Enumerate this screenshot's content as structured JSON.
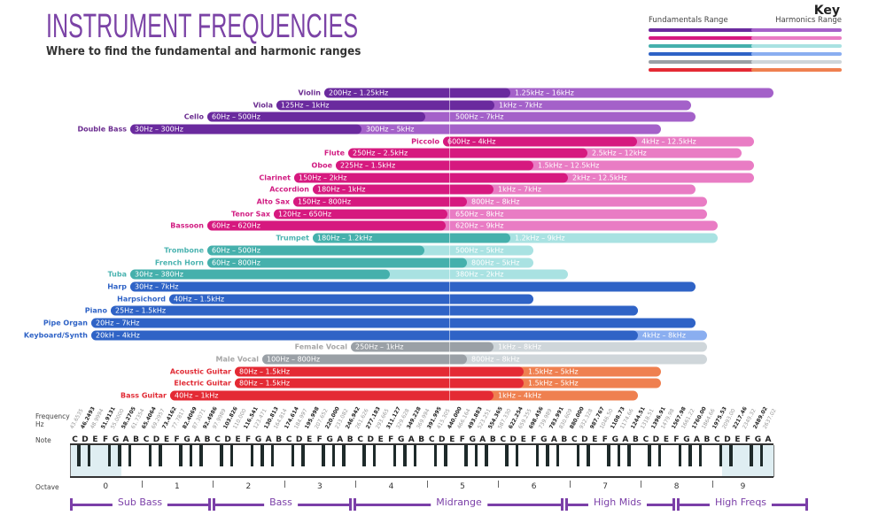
{
  "title": "INSTRUMENT FREQUENCIES",
  "subtitle": "Where to find the fundamental and harmonic ranges",
  "key": {
    "title": "Key",
    "fundamentals_label": "Fundamentals Range",
    "harmonics_label": "Harmonics Range"
  },
  "colors": {
    "strings": {
      "label": "#6b2d90",
      "fundamental": "#6a2a9e",
      "harmonic": "#a461c9"
    },
    "woodwinds": {
      "label": "#d11d82",
      "fundamental": "#d6197f",
      "harmonic": "#e97cc4"
    },
    "brass": {
      "label": "#4ab3b0",
      "fundamental": "#45b0ac",
      "harmonic": "#a9e2e2"
    },
    "keys": {
      "label": "#2f63c6",
      "fundamental": "#2f63c6",
      "harmonic": "#8aaef0"
    },
    "vocal": {
      "label": "#a6a6a6",
      "fundamental": "#9aa0a6",
      "harmonic": "#cfd6da"
    },
    "guitar": {
      "label": "#e12c36",
      "fundamental": "#e42a34",
      "harmonic": "#ef8050"
    }
  },
  "chart_data": {
    "type": "bar",
    "orientation": "horizontal-range",
    "instruments": [
      {
        "name": "Violin",
        "family": "strings",
        "fundamental": "200Hz – 1.25kHz",
        "harmonics": "1.25kHz – 16kHz"
      },
      {
        "name": "Viola",
        "family": "strings",
        "fundamental": "125Hz – 1kHz",
        "harmonics": "1kHz – 7kHz"
      },
      {
        "name": "Cello",
        "family": "strings",
        "fundamental": "60Hz – 500Hz",
        "harmonics": "500Hz – 7kHz"
      },
      {
        "name": "Double Bass",
        "family": "strings",
        "fundamental": "30Hz – 300Hz",
        "harmonics": "300Hz – 5kHz"
      },
      {
        "name": "Piccolo",
        "family": "woodwinds",
        "fundamental": "600Hz – 4kHz",
        "harmonics": "4kHz – 12.5kHz"
      },
      {
        "name": "Flute",
        "family": "woodwinds",
        "fundamental": "250Hz – 2.5kHz",
        "harmonics": "2.5kHz – 12kHz"
      },
      {
        "name": "Oboe",
        "family": "woodwinds",
        "fundamental": "225Hz – 1.5kHz",
        "harmonics": "1.5kHz – 12.5kHz"
      },
      {
        "name": "Clarinet",
        "family": "woodwinds",
        "fundamental": "150Hz – 2kHz",
        "harmonics": "2kHz – 12.5kHz"
      },
      {
        "name": "Accordion",
        "family": "woodwinds",
        "fundamental": "180Hz – 1kHz",
        "harmonics": "1kHz – 7kHz"
      },
      {
        "name": "Alto Sax",
        "family": "woodwinds",
        "fundamental": "150Hz – 800Hz",
        "harmonics": "800Hz – 8kHz"
      },
      {
        "name": "Tenor Sax",
        "family": "woodwinds",
        "fundamental": "120Hz – 650Hz",
        "harmonics": "650Hz – 8kHz"
      },
      {
        "name": "Bassoon",
        "family": "woodwinds",
        "fundamental": "60Hz – 620Hz",
        "harmonics": "620Hz – 9kHz"
      },
      {
        "name": "Trumpet",
        "family": "brass",
        "fundamental": "180Hz – 1.2kHz",
        "harmonics": "1.2kHz – 9kHz"
      },
      {
        "name": "Trombone",
        "family": "brass",
        "fundamental": "60Hz – 500Hz",
        "harmonics": "500Hz – 5kHz"
      },
      {
        "name": "French Horn",
        "family": "brass",
        "fundamental": "60Hz – 800Hz",
        "harmonics": "800Hz – 5kHz"
      },
      {
        "name": "Tuba",
        "family": "brass",
        "fundamental": "30Hz – 380Hz",
        "harmonics": "380Hz – 2kHz"
      },
      {
        "name": "Harp",
        "family": "keys",
        "fundamental": "30Hz – 7kHz",
        "harmonics": ""
      },
      {
        "name": "Harpsichord",
        "family": "keys",
        "fundamental": "40Hz – 1.5kHz",
        "harmonics": ""
      },
      {
        "name": "Piano",
        "family": "keys",
        "fundamental": "25Hz –  1.5kHz",
        "harmonics": ""
      },
      {
        "name": "Pipe Organ",
        "family": "keys",
        "fundamental": "20Hz – 7kHz",
        "harmonics": ""
      },
      {
        "name": "Keyboard/Synth",
        "family": "keys",
        "fundamental": "20kH – 4kHz",
        "harmonics": "4kHz – 8kHz"
      },
      {
        "name": "Female Vocal",
        "family": "vocal",
        "fundamental": "250Hz – 1kHz",
        "harmonics": "1kHz – 8kHz"
      },
      {
        "name": "Male Vocal",
        "family": "vocal",
        "fundamental": "100Hz – 800Hz",
        "harmonics": "800Hz – 8kHz"
      },
      {
        "name": "Acoustic Guitar",
        "family": "guitar",
        "fundamental": "80Hz – 1.5kHz",
        "harmonics": "1.5kHz – 5kHz"
      },
      {
        "name": "Electric Guitar",
        "family": "guitar",
        "fundamental": "80Hz – 1.5kHz",
        "harmonics": "1.5kHz – 5kHz"
      },
      {
        "name": "Bass Guitar",
        "family": "guitar",
        "fundamental": "40Hz – 1kHz",
        "harmonics": "1kHz – 4kHz"
      }
    ]
  },
  "keyboard": {
    "frequency_label": "Frequency Hz",
    "note_label": "Note",
    "octave_label": "Octave",
    "notes": [
      "C",
      "D",
      "E",
      "F",
      "G",
      "A",
      "B"
    ],
    "octaves": [
      "0",
      "1",
      "2",
      "3",
      "4",
      "5",
      "6",
      "7",
      "8",
      "9"
    ],
    "frequencies": [
      "43.6535",
      "46.2493",
      "48.9994",
      "51.9131",
      "55.0000",
      "58.2705",
      "61.7354",
      "65.4064",
      "69.2957",
      "73.4162",
      "77.7817",
      "82.4069",
      "87.3071",
      "92.4986",
      "97.9989",
      "103.826",
      "110.000",
      "116.541",
      "123.471",
      "130.813",
      "164.814",
      "174.614",
      "184.997",
      "195.998",
      "207.652",
      "220.000",
      "233.082",
      "246.942",
      "261.626",
      "277.183",
      "293.665",
      "311.127",
      "329.628",
      "349.228",
      "369.994",
      "391.995",
      "415.305",
      "440.000",
      "466.164",
      "493.883",
      "523.251",
      "554.365",
      "587.330",
      "622.254",
      "659.255",
      "698.456",
      "739.989",
      "783.991",
      "830.609",
      "880.000",
      "932.328",
      "987.767",
      "1046.50",
      "1108.73",
      "1174.66",
      "1244.51",
      "1318.51",
      "1396.91",
      "1479.98",
      "1567.98",
      "1661.22",
      "1760.00",
      "1864.66",
      "1975.53",
      "2093.00",
      "2217.46",
      "2349.32",
      "2489.02",
      "2637.02"
    ]
  },
  "ranges": [
    "Sub Bass",
    "Bass",
    "Midrange",
    "High Mids",
    "High Freqs"
  ]
}
